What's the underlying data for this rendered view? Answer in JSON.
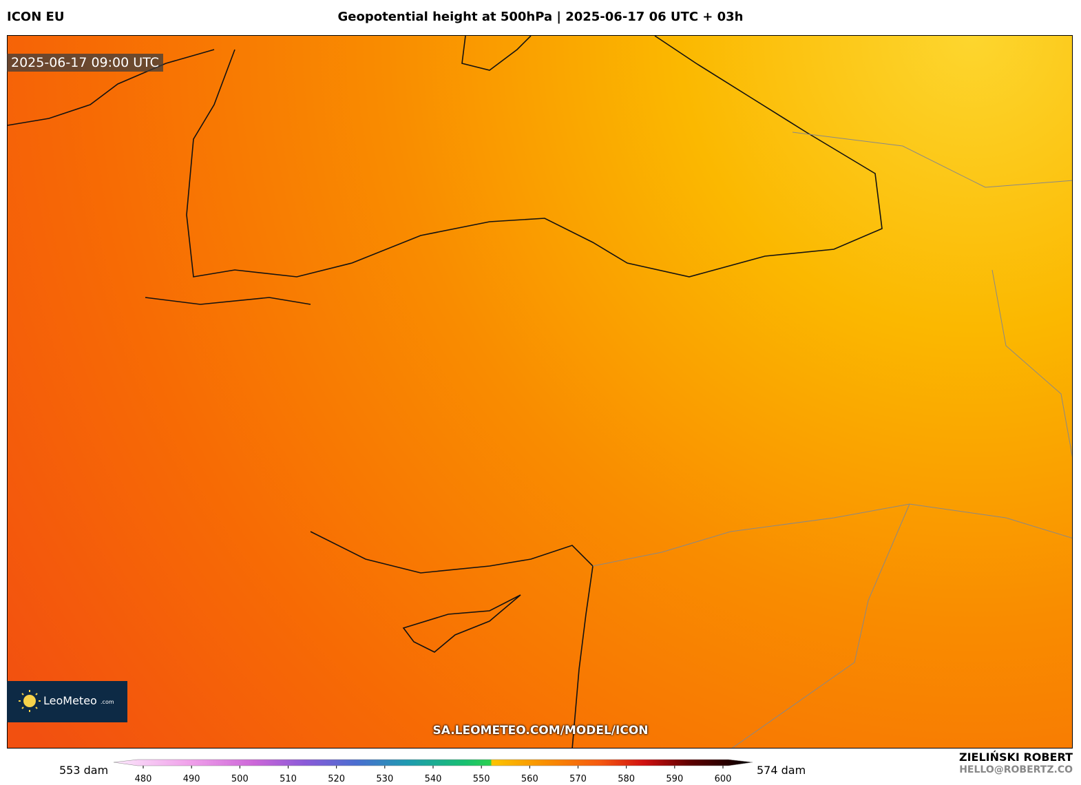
{
  "header": {
    "model": "ICON EU",
    "title": "Geopotential height at 500hPa | 2025-06-17 06 UTC + 03h"
  },
  "map": {
    "timestamp": "2025-06-17 09:00 UTC",
    "logo": {
      "name": "LeoMeteo",
      "suffix": ".com"
    },
    "source_url": "SA.LEOMETEO.COM/MODEL/ICON"
  },
  "colorbar": {
    "min_label": "553 dam",
    "max_label": "574 dam",
    "ticks": [
      480,
      490,
      500,
      510,
      520,
      530,
      540,
      550,
      560,
      570,
      580,
      590,
      600
    ]
  },
  "footer": {
    "author": "ZIELIŃSKI ROBERT",
    "email": "HELLO@ROBERTZ.CO"
  }
}
